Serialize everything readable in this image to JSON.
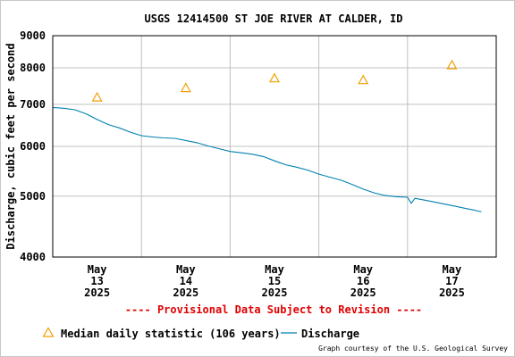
{
  "chart_data": {
    "type": "line",
    "title": "USGS 12414500 ST JOE RIVER AT CALDER, ID",
    "ylabel": "Discharge, cubic feet per second",
    "xlabel": "",
    "y_scale": "log",
    "ylim": [
      4000,
      9000
    ],
    "y_ticks": [
      {
        "value": 4000,
        "label": "4000"
      },
      {
        "value": 5000,
        "label": "5000"
      },
      {
        "value": 6000,
        "label": "6000"
      },
      {
        "value": 7000,
        "label": "7000"
      },
      {
        "value": 8000,
        "label": "8000"
      },
      {
        "value": 9000,
        "label": "9000"
      }
    ],
    "xlim": [
      "2025-05-12T12:00",
      "2025-05-17T12:00"
    ],
    "x_ticks": [
      {
        "value": "2025-05-13T00:00",
        "month": "May",
        "day": "13",
        "year": "2025"
      },
      {
        "value": "2025-05-14T00:00",
        "month": "May",
        "day": "14",
        "year": "2025"
      },
      {
        "value": "2025-05-15T00:00",
        "month": "May",
        "day": "15",
        "year": "2025"
      },
      {
        "value": "2025-05-16T00:00",
        "month": "May",
        "day": "16",
        "year": "2025"
      },
      {
        "value": "2025-05-17T00:00",
        "month": "May",
        "day": "17",
        "year": "2025"
      }
    ],
    "grid": true,
    "legend_position": "bottom",
    "series": [
      {
        "name": "Median daily statistic (106 years)",
        "marker": "triangle",
        "color": "#f0a000",
        "points": [
          {
            "x": "2025-05-13T00:00",
            "y": 7180
          },
          {
            "x": "2025-05-14T00:00",
            "y": 7430
          },
          {
            "x": "2025-05-15T00:00",
            "y": 7700
          },
          {
            "x": "2025-05-16T00:00",
            "y": 7650
          },
          {
            "x": "2025-05-17T00:00",
            "y": 8080
          }
        ]
      },
      {
        "name": "Discharge",
        "marker": "line",
        "color": "#0080b0",
        "points": [
          {
            "x": "2025-05-12T12:00",
            "y": 6920
          },
          {
            "x": "2025-05-12T15:00",
            "y": 6900
          },
          {
            "x": "2025-05-12T18:00",
            "y": 6860
          },
          {
            "x": "2025-05-12T21:00",
            "y": 6760
          },
          {
            "x": "2025-05-13T00:00",
            "y": 6620
          },
          {
            "x": "2025-05-13T03:00",
            "y": 6500
          },
          {
            "x": "2025-05-13T06:00",
            "y": 6420
          },
          {
            "x": "2025-05-13T09:00",
            "y": 6320
          },
          {
            "x": "2025-05-13T12:00",
            "y": 6240
          },
          {
            "x": "2025-05-13T15:00",
            "y": 6210
          },
          {
            "x": "2025-05-13T18:00",
            "y": 6190
          },
          {
            "x": "2025-05-13T21:00",
            "y": 6180
          },
          {
            "x": "2025-05-14T00:00",
            "y": 6130
          },
          {
            "x": "2025-05-14T03:00",
            "y": 6080
          },
          {
            "x": "2025-05-14T06:00",
            "y": 6010
          },
          {
            "x": "2025-05-14T09:00",
            "y": 5950
          },
          {
            "x": "2025-05-14T12:00",
            "y": 5890
          },
          {
            "x": "2025-05-14T15:00",
            "y": 5860
          },
          {
            "x": "2025-05-14T18:00",
            "y": 5830
          },
          {
            "x": "2025-05-14T21:00",
            "y": 5780
          },
          {
            "x": "2025-05-15T00:00",
            "y": 5690
          },
          {
            "x": "2025-05-15T03:00",
            "y": 5610
          },
          {
            "x": "2025-05-15T06:00",
            "y": 5560
          },
          {
            "x": "2025-05-15T09:00",
            "y": 5500
          },
          {
            "x": "2025-05-15T12:00",
            "y": 5420
          },
          {
            "x": "2025-05-15T15:00",
            "y": 5360
          },
          {
            "x": "2025-05-15T18:00",
            "y": 5300
          },
          {
            "x": "2025-05-15T21:00",
            "y": 5220
          },
          {
            "x": "2025-05-16T00:00",
            "y": 5130
          },
          {
            "x": "2025-05-16T03:00",
            "y": 5060
          },
          {
            "x": "2025-05-16T06:00",
            "y": 5010
          },
          {
            "x": "2025-05-16T09:00",
            "y": 4990
          },
          {
            "x": "2025-05-16T12:00",
            "y": 4980
          },
          {
            "x": "2025-05-16T13:00",
            "y": 4870
          },
          {
            "x": "2025-05-16T14:00",
            "y": 4960
          },
          {
            "x": "2025-05-16T18:00",
            "y": 4910
          },
          {
            "x": "2025-05-16T21:00",
            "y": 4870
          },
          {
            "x": "2025-05-17T00:00",
            "y": 4830
          },
          {
            "x": "2025-05-17T03:00",
            "y": 4790
          },
          {
            "x": "2025-05-17T06:00",
            "y": 4750
          },
          {
            "x": "2025-05-17T08:00",
            "y": 4720
          }
        ]
      }
    ]
  },
  "notice": "---- Provisional Data Subject to Revision ----",
  "credit": "Graph courtesy of the U.S. Geological Survey",
  "colors": {
    "notice": "#e00000",
    "grid": "#c0c0c0",
    "axis": "#000000"
  }
}
